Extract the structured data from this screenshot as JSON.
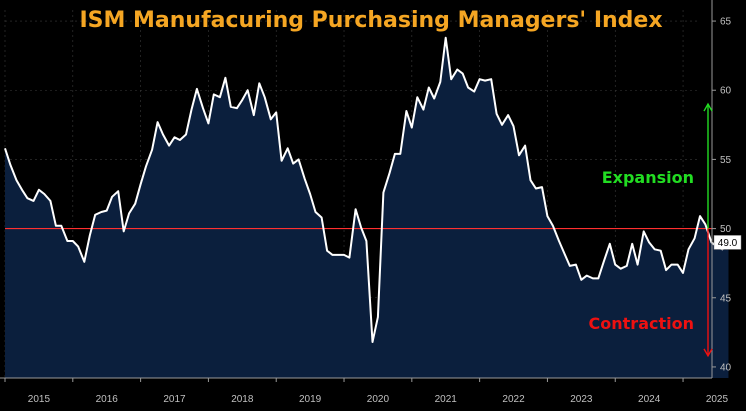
{
  "chart_data": {
    "type": "area",
    "title": "ISM Manufacuring Purchasing Managers' Index",
    "xlabel": "",
    "ylabel": "",
    "x_range": [
      2015.0,
      2025.25
    ],
    "ylim": [
      39.2,
      65.8
    ],
    "y_ticks": [
      40,
      45,
      50,
      55,
      60,
      65
    ],
    "x_ticks": [
      2015,
      2016,
      2017,
      2018,
      2019,
      2020,
      2021,
      2022,
      2023,
      2024,
      2025
    ],
    "grid": true,
    "reference_line": {
      "value": 50
    },
    "last_value_label": "49.0",
    "annotations": [
      {
        "text": "Expansion",
        "color": "#22dd22",
        "arrow": "up",
        "from": 50,
        "to": 59
      },
      {
        "text": "Contraction",
        "color": "#ee1111",
        "arrow": "down",
        "from": 50,
        "to": 40.8
      }
    ],
    "series": [
      {
        "values": [
          [
            2015.0,
            55.8
          ],
          [
            2015.08,
            54.6
          ],
          [
            2015.17,
            53.5
          ],
          [
            2015.25,
            52.8
          ],
          [
            2015.33,
            52.2
          ],
          [
            2015.42,
            52.0
          ],
          [
            2015.5,
            52.8
          ],
          [
            2015.58,
            52.5
          ],
          [
            2015.67,
            52.0
          ],
          [
            2015.75,
            50.2
          ],
          [
            2015.83,
            50.2
          ],
          [
            2015.92,
            49.1
          ],
          [
            2016.0,
            49.1
          ],
          [
            2016.08,
            48.7
          ],
          [
            2016.17,
            47.6
          ],
          [
            2016.25,
            49.5
          ],
          [
            2016.33,
            51.0
          ],
          [
            2016.42,
            51.2
          ],
          [
            2016.5,
            51.3
          ],
          [
            2016.58,
            52.3
          ],
          [
            2016.67,
            52.7
          ],
          [
            2016.75,
            49.8
          ],
          [
            2016.83,
            51.1
          ],
          [
            2016.92,
            51.8
          ],
          [
            2017.0,
            53.2
          ],
          [
            2017.08,
            54.5
          ],
          [
            2017.17,
            55.7
          ],
          [
            2017.25,
            57.7
          ],
          [
            2017.33,
            56.8
          ],
          [
            2017.42,
            56.0
          ],
          [
            2017.5,
            56.6
          ],
          [
            2017.58,
            56.4
          ],
          [
            2017.67,
            56.8
          ],
          [
            2017.75,
            58.6
          ],
          [
            2017.83,
            60.1
          ],
          [
            2017.92,
            58.7
          ],
          [
            2018.0,
            57.6
          ],
          [
            2018.08,
            59.7
          ],
          [
            2018.17,
            59.5
          ],
          [
            2018.25,
            60.9
          ],
          [
            2018.33,
            58.8
          ],
          [
            2018.42,
            58.7
          ],
          [
            2018.5,
            59.3
          ],
          [
            2018.58,
            60.0
          ],
          [
            2018.67,
            58.2
          ],
          [
            2018.75,
            60.5
          ],
          [
            2018.83,
            59.5
          ],
          [
            2018.92,
            57.9
          ],
          [
            2019.0,
            58.4
          ],
          [
            2019.08,
            54.9
          ],
          [
            2019.17,
            55.8
          ],
          [
            2019.25,
            54.7
          ],
          [
            2019.33,
            55.0
          ],
          [
            2019.42,
            53.6
          ],
          [
            2019.5,
            52.5
          ],
          [
            2019.58,
            51.2
          ],
          [
            2019.67,
            50.8
          ],
          [
            2019.75,
            48.4
          ],
          [
            2019.83,
            48.1
          ],
          [
            2019.92,
            48.1
          ],
          [
            2020.0,
            48.1
          ],
          [
            2020.08,
            47.9
          ],
          [
            2020.17,
            51.4
          ],
          [
            2020.25,
            50.1
          ],
          [
            2020.33,
            49.1
          ],
          [
            2020.42,
            41.8
          ],
          [
            2020.5,
            43.6
          ],
          [
            2020.58,
            52.6
          ],
          [
            2020.67,
            54.0
          ],
          [
            2020.75,
            55.4
          ],
          [
            2020.83,
            55.4
          ],
          [
            2020.92,
            58.5
          ],
          [
            2021.0,
            57.3
          ],
          [
            2021.08,
            59.5
          ],
          [
            2021.17,
            58.6
          ],
          [
            2021.25,
            60.2
          ],
          [
            2021.33,
            59.4
          ],
          [
            2021.42,
            60.6
          ],
          [
            2021.5,
            63.8
          ],
          [
            2021.58,
            60.8
          ],
          [
            2021.67,
            61.5
          ],
          [
            2021.75,
            61.2
          ],
          [
            2021.83,
            60.2
          ],
          [
            2021.92,
            59.9
          ],
          [
            2022.0,
            60.8
          ],
          [
            2022.08,
            60.7
          ],
          [
            2022.17,
            60.8
          ],
          [
            2022.25,
            58.3
          ],
          [
            2022.33,
            57.5
          ],
          [
            2022.42,
            58.2
          ],
          [
            2022.5,
            57.4
          ],
          [
            2022.58,
            55.3
          ],
          [
            2022.67,
            56.0
          ],
          [
            2022.75,
            53.5
          ],
          [
            2022.83,
            52.9
          ],
          [
            2022.92,
            53.0
          ],
          [
            2023.0,
            50.9
          ],
          [
            2023.08,
            50.2
          ],
          [
            2023.17,
            49.1
          ],
          [
            2023.25,
            48.2
          ],
          [
            2023.33,
            47.3
          ],
          [
            2023.42,
            47.4
          ],
          [
            2023.5,
            46.3
          ],
          [
            2023.58,
            46.6
          ],
          [
            2023.67,
            46.4
          ],
          [
            2023.75,
            46.4
          ],
          [
            2023.83,
            47.6
          ],
          [
            2023.92,
            48.9
          ],
          [
            2024.0,
            47.4
          ],
          [
            2024.08,
            47.1
          ],
          [
            2024.17,
            47.3
          ],
          [
            2024.25,
            48.9
          ],
          [
            2024.33,
            47.4
          ],
          [
            2024.42,
            49.8
          ],
          [
            2024.5,
            49.0
          ],
          [
            2024.58,
            48.5
          ],
          [
            2024.67,
            48.4
          ],
          [
            2024.75,
            47.0
          ],
          [
            2024.83,
            47.4
          ],
          [
            2024.92,
            47.4
          ],
          [
            2025.0,
            46.8
          ],
          [
            2025.08,
            48.5
          ],
          [
            2025.17,
            49.3
          ],
          [
            2025.25,
            50.9
          ],
          [
            2025.33,
            50.3
          ],
          [
            2025.42,
            49.0
          ],
          [
            2025.5,
            48.7
          ],
          [
            2025.58,
            48.5
          ],
          [
            2025.67,
            49.0
          ]
        ]
      }
    ]
  },
  "colors": {
    "background": "#000000",
    "area_fill": "#0b1f3d",
    "line": "#ffffff",
    "title": "#f5a623",
    "reference_line": "#ff3030",
    "grid": "#3a3a3a",
    "tick": "#c0c0c0"
  }
}
